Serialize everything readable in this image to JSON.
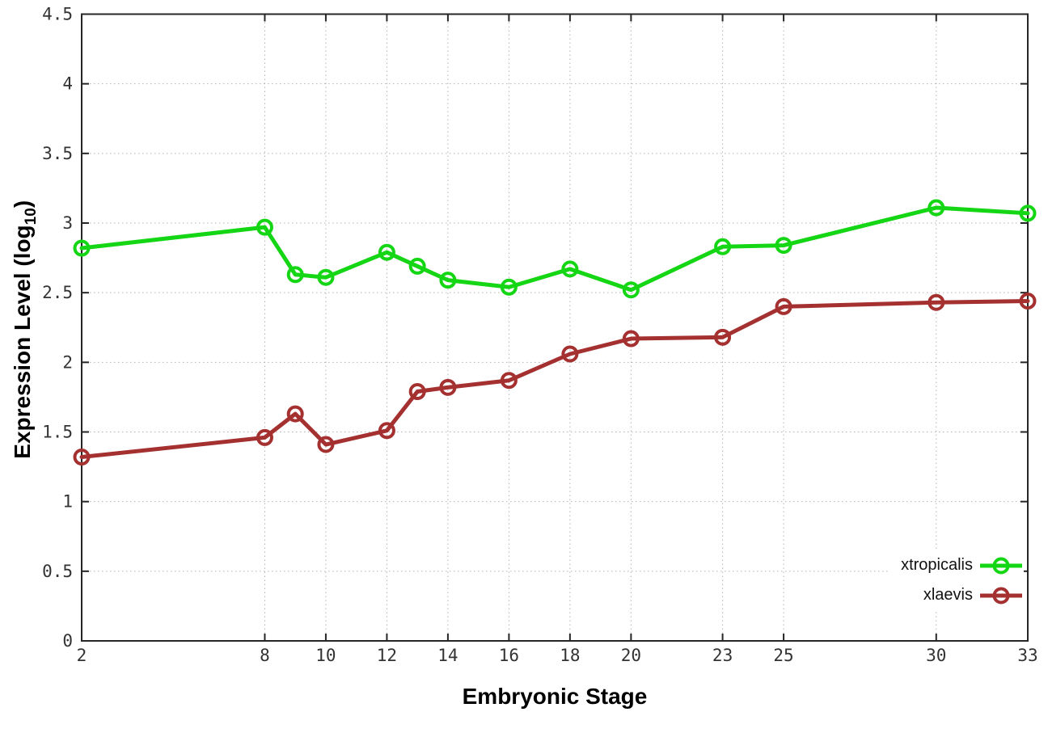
{
  "figure": {
    "ylabel_prefix": "Expression Level (log",
    "ylabel_sub": "10",
    "ylabel_suffix": ")",
    "xlabel": "Embryonic Stage"
  },
  "chart_data": {
    "type": "line",
    "title": "",
    "xlabel": "Embryonic Stage",
    "ylabel": "Expression Level (log10)",
    "x": [
      2,
      8,
      9,
      10,
      12,
      13,
      14,
      16,
      18,
      20,
      23,
      25,
      30,
      33
    ],
    "series": [
      {
        "name": "xtropicalis",
        "color": "#15d615",
        "values": [
          2.82,
          2.97,
          2.63,
          2.61,
          2.79,
          2.69,
          2.59,
          2.54,
          2.67,
          2.52,
          2.83,
          2.84,
          3.11,
          3.07
        ]
      },
      {
        "name": "xlaevis",
        "color": "#a43030",
        "values": [
          1.32,
          1.46,
          1.63,
          1.41,
          1.51,
          1.79,
          1.82,
          1.87,
          2.06,
          2.17,
          2.18,
          2.4,
          2.43,
          2.44
        ]
      }
    ],
    "xlim": [
      2,
      33
    ],
    "ylim": [
      0,
      4.5
    ],
    "xticks": [
      2,
      8,
      10,
      12,
      14,
      16,
      18,
      20,
      23,
      25,
      30,
      33
    ],
    "xtick_labels": [
      "2",
      "8",
      "10",
      "12",
      "14",
      "16",
      "18",
      "20",
      "23",
      "25",
      "30",
      "33"
    ],
    "yticks": [
      0,
      0.5,
      1,
      1.5,
      2,
      2.5,
      3,
      3.5,
      4,
      4.5
    ],
    "ytick_labels": [
      "0",
      "0.5",
      "1",
      "1.5",
      "2",
      "2.5",
      "3",
      "3.5",
      "4",
      "4.5"
    ],
    "grid": true,
    "legend_position": "bottom-right",
    "style": {
      "grid_color": "#b3b3b3",
      "border_color": "#262626",
      "marker": "open-circle"
    }
  }
}
